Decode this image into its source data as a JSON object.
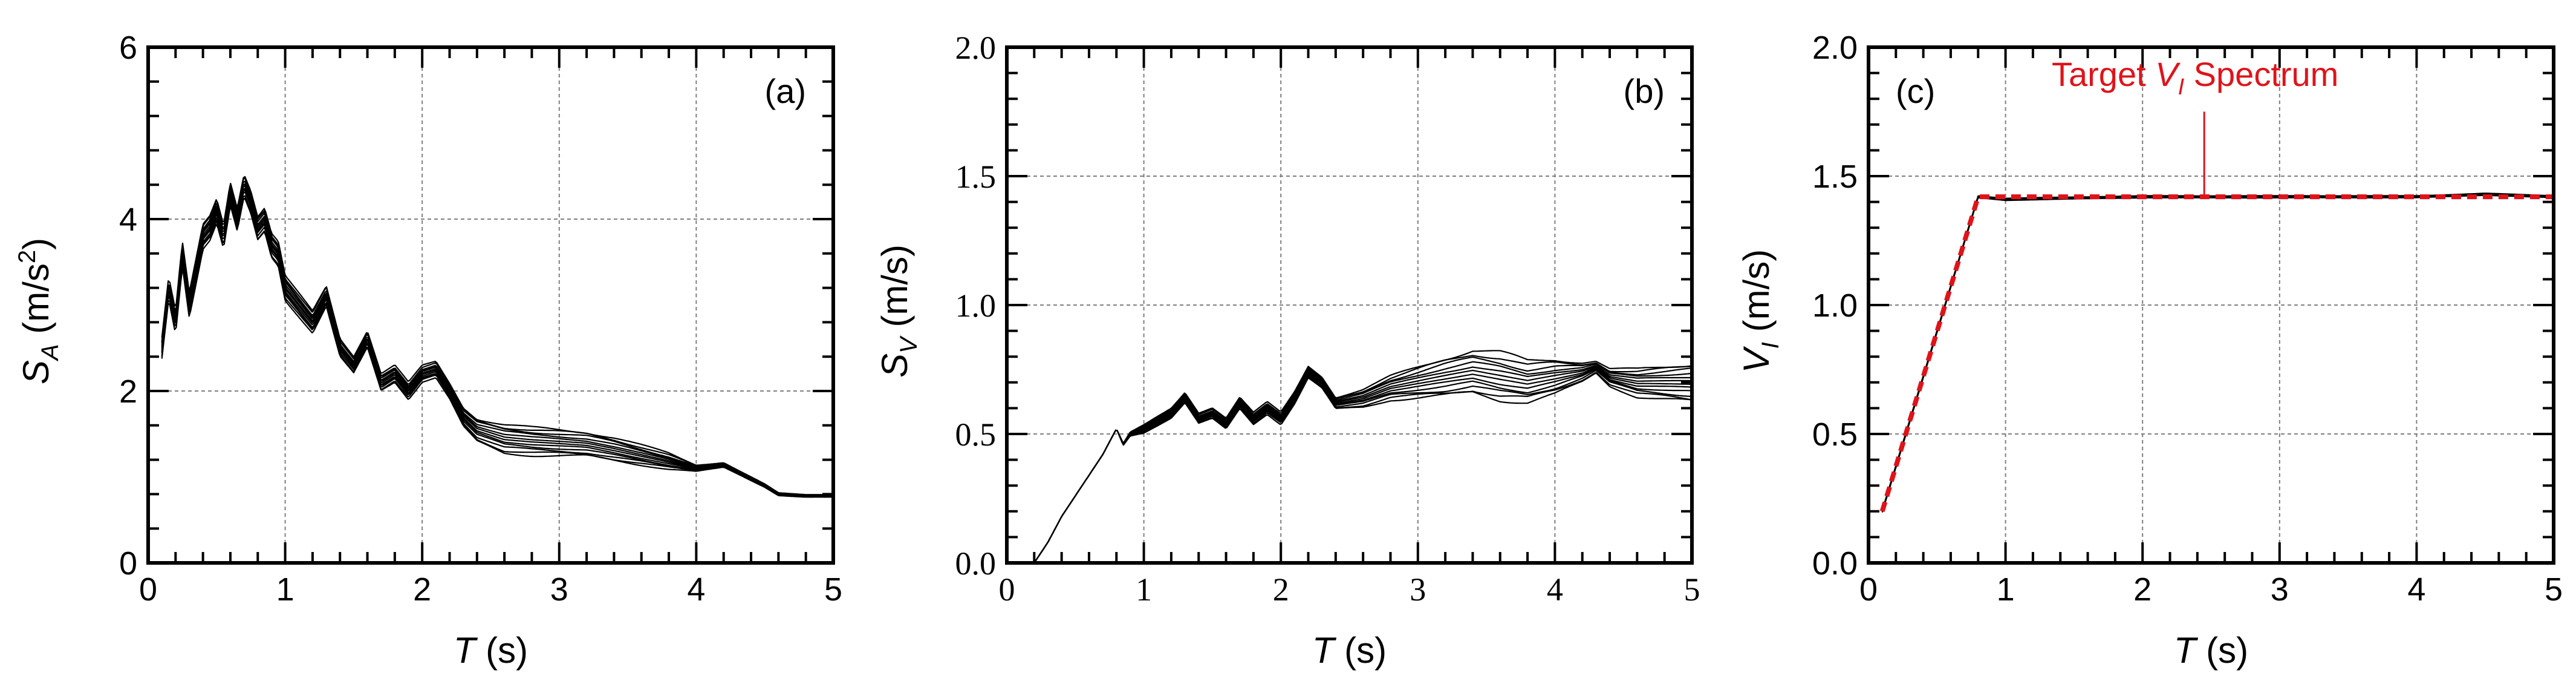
{
  "colors": {
    "ink": "#000000",
    "grid": "#7f7f7f",
    "accent": "#e0131a"
  },
  "chart_data": [
    {
      "id": "a",
      "type": "line",
      "panel_label": "(a)",
      "xlabel": "T",
      "xunit": "(s)",
      "ylabel": "S",
      "ylabel_sub": "A",
      "yunit_open": "(m/s",
      "yunit_sup": "2",
      "yunit_close": ")",
      "xlim": [
        0,
        5
      ],
      "ylim": [
        0,
        6
      ],
      "x_ticks": [
        0,
        1,
        2,
        3,
        4,
        5
      ],
      "y_ticks": [
        0,
        2,
        4,
        6
      ],
      "x_tick_labels": [
        "0",
        "1",
        "2",
        "3",
        "4",
        "5"
      ],
      "y_tick_labels": [
        "0",
        "2",
        "4",
        "6"
      ],
      "grid": true,
      "tick_font": "sans",
      "ensemble_count": 12,
      "center_series": {
        "x": [
          0.1,
          0.15,
          0.2,
          0.25,
          0.3,
          0.35,
          0.4,
          0.45,
          0.5,
          0.55,
          0.6,
          0.65,
          0.7,
          0.75,
          0.8,
          0.85,
          0.9,
          0.95,
          1.0,
          1.1,
          1.2,
          1.3,
          1.4,
          1.5,
          1.6,
          1.7,
          1.8,
          1.9,
          2.0,
          2.1,
          2.2,
          2.3,
          2.4,
          2.5,
          2.6,
          2.8,
          3.0,
          3.2,
          3.4,
          3.6,
          3.8,
          4.0,
          4.1,
          4.2,
          4.3,
          4.4,
          4.5,
          4.6,
          4.8,
          5.0
        ],
        "y": [
          2.5,
          3.2,
          2.8,
          3.6,
          3.0,
          3.4,
          3.8,
          3.9,
          4.1,
          3.8,
          4.3,
          4.0,
          4.4,
          4.2,
          3.9,
          4.0,
          3.7,
          3.6,
          3.2,
          3.0,
          2.8,
          3.1,
          2.5,
          2.3,
          2.6,
          2.1,
          2.2,
          2.0,
          2.2,
          2.25,
          2.0,
          1.7,
          1.55,
          1.5,
          1.45,
          1.42,
          1.4,
          1.38,
          1.32,
          1.25,
          1.18,
          1.1,
          1.12,
          1.14,
          1.06,
          0.98,
          0.9,
          0.8,
          0.78,
          0.78
        ]
      },
      "spread_series": {
        "x": [
          0.1,
          0.5,
          1.0,
          1.5,
          2.0,
          2.2,
          2.4,
          2.6,
          3.0,
          3.4,
          3.8,
          4.0,
          4.3,
          4.6,
          5.0
        ],
        "y": [
          0.15,
          0.2,
          0.18,
          0.14,
          0.12,
          0.12,
          0.18,
          0.22,
          0.2,
          0.18,
          0.12,
          0.05,
          0.03,
          0.02,
          0.02
        ]
      }
    },
    {
      "id": "b",
      "type": "line",
      "panel_label": "(b)",
      "xlabel": "T",
      "xunit": "(s)",
      "ylabel": "S",
      "ylabel_sub": "V",
      "yunit_open": "(m/s)",
      "yunit_sup": "",
      "yunit_close": "",
      "xlim": [
        0,
        5
      ],
      "ylim": [
        0,
        2
      ],
      "x_ticks": [
        0,
        1,
        2,
        3,
        4,
        5
      ],
      "y_ticks": [
        0,
        0.5,
        1.0,
        1.5,
        2.0
      ],
      "x_tick_labels": [
        "0",
        "1",
        "2",
        "3",
        "4",
        "5"
      ],
      "y_tick_labels": [
        "0.0",
        "0.5",
        "1.0",
        "1.5",
        "2.0"
      ],
      "grid": true,
      "tick_font": "serif",
      "ensemble_count": 12,
      "center_series": {
        "x": [
          0.2,
          0.3,
          0.4,
          0.5,
          0.6,
          0.7,
          0.8,
          0.85,
          0.9,
          1.0,
          1.1,
          1.2,
          1.3,
          1.4,
          1.5,
          1.6,
          1.7,
          1.8,
          1.9,
          2.0,
          2.1,
          2.2,
          2.3,
          2.4,
          2.6,
          2.8,
          3.0,
          3.2,
          3.4,
          3.6,
          3.8,
          4.0,
          4.2,
          4.3,
          4.4,
          4.6,
          4.8,
          5.0
        ],
        "y": [
          0.0,
          0.08,
          0.18,
          0.26,
          0.34,
          0.42,
          0.52,
          0.46,
          0.5,
          0.52,
          0.55,
          0.58,
          0.64,
          0.56,
          0.58,
          0.54,
          0.62,
          0.56,
          0.6,
          0.56,
          0.64,
          0.74,
          0.7,
          0.62,
          0.64,
          0.68,
          0.7,
          0.72,
          0.74,
          0.72,
          0.7,
          0.72,
          0.74,
          0.76,
          0.72,
          0.7,
          0.7,
          0.7
        ]
      },
      "spread_series": {
        "x": [
          0.2,
          0.8,
          1.0,
          1.5,
          2.0,
          2.4,
          2.8,
          3.2,
          3.6,
          4.0,
          4.3,
          4.6,
          5.0
        ],
        "y": [
          0.0,
          0.0,
          0.02,
          0.03,
          0.03,
          0.03,
          0.06,
          0.1,
          0.12,
          0.09,
          0.03,
          0.07,
          0.1
        ]
      }
    },
    {
      "id": "c",
      "type": "line",
      "panel_label": "(c)",
      "xlabel": "T",
      "xunit": "(s)",
      "ylabel": "V",
      "ylabel_sub": "I",
      "yunit_open": "(m/s)",
      "yunit_sup": "",
      "yunit_close": "",
      "xlim": [
        0,
        5
      ],
      "ylim": [
        0,
        2
      ],
      "x_ticks": [
        0,
        1,
        2,
        3,
        4,
        5
      ],
      "y_ticks": [
        0,
        0.5,
        1.0,
        1.5,
        2.0
      ],
      "x_tick_labels": [
        "0",
        "1",
        "2",
        "3",
        "4",
        "5"
      ],
      "y_tick_labels": [
        "0.0",
        "0.5",
        "1.0",
        "1.5",
        "2.0"
      ],
      "grid": true,
      "tick_font": "sans",
      "ensemble_count": 4,
      "center_series": {
        "x": [
          0.1,
          0.8,
          1.0,
          2.0,
          3.0,
          4.0,
          4.5,
          5.0
        ],
        "y": [
          0.2,
          1.42,
          1.41,
          1.42,
          1.42,
          1.42,
          1.43,
          1.42
        ]
      },
      "spread_series": {
        "x": [
          0.1,
          5.0
        ],
        "y": [
          0.005,
          0.005
        ]
      },
      "target": {
        "x": [
          0.1,
          0.8,
          5.0
        ],
        "y": [
          0.2,
          1.42,
          1.42
        ],
        "label_prefix": "Target ",
        "label_var": "V",
        "label_sub": "I",
        "label_suffix": " Spectrum",
        "leader_x": 2.45,
        "leader_y_from": 1.75,
        "leader_y_to": 1.42
      }
    }
  ]
}
